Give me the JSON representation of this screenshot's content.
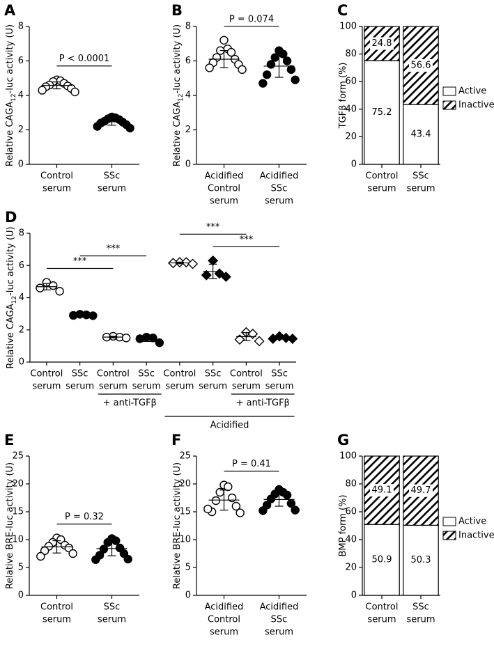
{
  "chart_data": [
    {
      "type": "dotplot",
      "panel": "A",
      "ylabel": [
        "Relative CAGA",
        "12",
        "-luc activity (U)"
      ],
      "ylim": [
        0,
        8
      ],
      "yticks": [
        0,
        2,
        4,
        6,
        8
      ],
      "categories": [
        [
          "Control",
          "serum"
        ],
        [
          "SSc",
          "serum"
        ]
      ],
      "groups": [
        {
          "fill": "#ffffff",
          "marker": "circle",
          "values": [
            4.9,
            4.85,
            4.8,
            4.7,
            4.6,
            4.55,
            4.5,
            4.4,
            4.3,
            4.2
          ],
          "mean": 4.58,
          "sd": 0.2
        },
        {
          "fill": "#000000",
          "marker": "circle",
          "values": [
            2.75,
            2.7,
            2.65,
            2.6,
            2.5,
            2.45,
            2.4,
            2.3,
            2.2,
            2.1
          ],
          "mean": 2.47,
          "sd": 0.2
        }
      ],
      "comparisons": [
        {
          "from": 0,
          "to": 1,
          "label": "P < 0.0001"
        }
      ]
    },
    {
      "type": "dotplot",
      "panel": "B",
      "ylabel": [
        "Relative CAGA",
        "12",
        "-luc activity (U)"
      ],
      "ylim": [
        0,
        8
      ],
      "yticks": [
        0,
        2,
        4,
        6,
        8
      ],
      "categories": [
        [
          "Acidified",
          "Control",
          "serum"
        ],
        [
          "Acidified",
          "SSc",
          "serum"
        ]
      ],
      "groups": [
        {
          "fill": "#ffffff",
          "marker": "circle",
          "values": [
            7.2,
            6.7,
            6.6,
            6.5,
            6.2,
            6.1,
            5.9,
            5.8,
            5.6,
            5.5
          ],
          "mean": 6.1,
          "sd": 0.5
        },
        {
          "fill": "#000000",
          "marker": "circle",
          "values": [
            6.6,
            6.4,
            6.2,
            6.0,
            5.8,
            5.5,
            5.2,
            4.9,
            4.7
          ],
          "mean": 5.7,
          "sd": 0.65
        }
      ],
      "comparisons": [
        {
          "from": 0,
          "to": 1,
          "label": "P = 0.074"
        }
      ]
    },
    {
      "type": "stacked_bar",
      "panel": "C",
      "ylabel": [
        "TGFβ form (%)"
      ],
      "ylim": [
        0,
        100
      ],
      "yticks": [
        0,
        20,
        40,
        60,
        80,
        100
      ],
      "categories": [
        [
          "Control",
          "serum"
        ],
        [
          "SSc",
          "serum"
        ]
      ],
      "series": [
        {
          "name": "Active",
          "color": "#ffffff",
          "hatch": false,
          "values": [
            75.2,
            43.4
          ]
        },
        {
          "name": "Inactive",
          "color": "#ffffff",
          "hatch": true,
          "values": [
            24.8,
            56.6
          ]
        }
      ],
      "legend": "right"
    },
    {
      "type": "dotplot",
      "panel": "D",
      "ylabel": [
        "Relative CAGA",
        "12",
        "-luc activity (U)"
      ],
      "ylim": [
        0,
        8
      ],
      "yticks": [
        0,
        2,
        4,
        6,
        8
      ],
      "categories": [
        [
          "Control",
          "serum"
        ],
        [
          "SSc",
          "serum"
        ],
        [
          "Control",
          "serum"
        ],
        [
          "SSc",
          "serum"
        ],
        [
          "Control",
          "serum"
        ],
        [
          "SSc",
          "serum"
        ],
        [
          "Control",
          "serum"
        ],
        [
          "SSc",
          "serum"
        ]
      ],
      "groups": [
        {
          "fill": "#ffffff",
          "marker": "circle",
          "values": [
            4.95,
            4.75,
            4.6,
            4.4
          ],
          "mean": 4.68,
          "sd": 0.2
        },
        {
          "fill": "#000000",
          "marker": "circle",
          "values": [
            2.97,
            2.93,
            2.9,
            2.88
          ],
          "mean": 2.92,
          "sd": 0.05
        },
        {
          "fill": "#ffffff",
          "marker": "circle",
          "values": [
            1.6,
            1.55,
            1.55,
            1.5
          ],
          "mean": 1.55,
          "sd": 0.05
        },
        {
          "fill": "#000000",
          "marker": "circle",
          "values": [
            1.55,
            1.5,
            1.45,
            1.2
          ],
          "mean": 1.43,
          "sd": 0.15
        },
        {
          "fill": "#ffffff",
          "marker": "diamond",
          "values": [
            6.2,
            6.2,
            6.15,
            6.1
          ],
          "mean": 6.16,
          "sd": 0.05
        },
        {
          "fill": "#000000",
          "marker": "diamond",
          "values": [
            6.3,
            5.5,
            5.4,
            5.3
          ],
          "mean": 5.63,
          "sd": 0.45
        },
        {
          "fill": "#ffffff",
          "marker": "diamond",
          "values": [
            1.85,
            1.75,
            1.4,
            1.3
          ],
          "mean": 1.58,
          "sd": 0.25
        },
        {
          "fill": "#000000",
          "marker": "diamond",
          "values": [
            1.6,
            1.5,
            1.45,
            1.45
          ],
          "mean": 1.5,
          "sd": 0.07
        }
      ],
      "comparisons": [
        {
          "from": 0,
          "to": 2,
          "label": "***"
        },
        {
          "from": 1,
          "to": 3,
          "label": "***"
        },
        {
          "from": 5,
          "to": 7,
          "label": "***"
        },
        {
          "from": 4,
          "to": 6,
          "label": "***"
        }
      ],
      "group_labels": [
        {
          "label": "+ anti-TGFβ",
          "from": 2,
          "to": 3
        },
        {
          "label": "+ anti-TGFβ",
          "from": 6,
          "to": 7
        },
        {
          "label": "Acidified",
          "from": 4,
          "to": 7
        }
      ]
    },
    {
      "type": "dotplot",
      "panel": "E",
      "ylabel": [
        "Relative BRE-luc activity (U)"
      ],
      "ylim": [
        0,
        25
      ],
      "yticks": [
        0,
        5,
        10,
        15,
        20,
        25
      ],
      "categories": [
        [
          "Control",
          "serum"
        ],
        [
          "SSc",
          "serum"
        ]
      ],
      "groups": [
        {
          "fill": "#ffffff",
          "marker": "circle",
          "values": [
            10.3,
            10.0,
            9.5,
            9.0,
            8.8,
            8.5,
            8.0,
            7.5,
            7.0
          ],
          "mean": 8.7,
          "sd": 1.1
        },
        {
          "fill": "#000000",
          "marker": "circle",
          "values": [
            10.2,
            9.8,
            9.5,
            8.5,
            8.3,
            7.5,
            7.2,
            6.5,
            6.4
          ],
          "mean": 8.4,
          "sd": 1.3
        }
      ],
      "comparisons": [
        {
          "from": 0,
          "to": 1,
          "label": "P = 0.32"
        }
      ]
    },
    {
      "type": "dotplot",
      "panel": "F",
      "ylabel": [
        "Relative BRE-luc activity (U)"
      ],
      "ylim": [
        0,
        25
      ],
      "yticks": [
        0,
        5,
        10,
        15,
        20,
        25
      ],
      "categories": [
        [
          "Acidified",
          "Control",
          "serum"
        ],
        [
          "Acidified",
          "SSc",
          "serum"
        ]
      ],
      "groups": [
        {
          "fill": "#ffffff",
          "marker": "circle",
          "values": [
            19.8,
            19.5,
            18.5,
            17.5,
            17.0,
            16.0,
            15.0,
            14.8,
            15.5
          ],
          "mean": 17.1,
          "sd": 1.8
        },
        {
          "fill": "#000000",
          "marker": "circle",
          "values": [
            19.0,
            18.5,
            18.2,
            18.0,
            17.3,
            16.5,
            16.2,
            15.3,
            15.2
          ],
          "mean": 17.2,
          "sd": 1.2
        }
      ],
      "comparisons": [
        {
          "from": 0,
          "to": 1,
          "label": "P = 0.41"
        }
      ]
    },
    {
      "type": "stacked_bar",
      "panel": "G",
      "ylabel": [
        "BMP form (%)"
      ],
      "ylim": [
        0,
        100
      ],
      "yticks": [
        0,
        20,
        40,
        60,
        80,
        100
      ],
      "categories": [
        [
          "Control",
          "serum"
        ],
        [
          "SSc",
          "serum"
        ]
      ],
      "series": [
        {
          "name": "Active",
          "color": "#ffffff",
          "hatch": false,
          "values": [
            50.9,
            50.3
          ]
        },
        {
          "name": "Inactive",
          "color": "#ffffff",
          "hatch": true,
          "values": [
            49.1,
            49.7
          ]
        }
      ],
      "legend": "right"
    }
  ]
}
